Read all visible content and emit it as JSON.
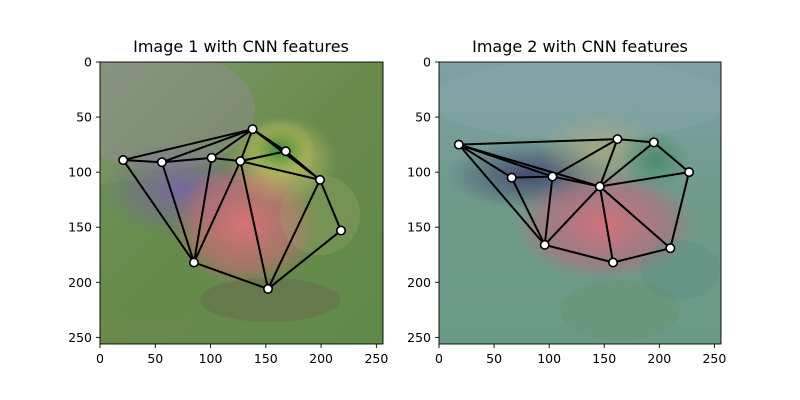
{
  "chart_data": [
    {
      "type": "scatter",
      "title": "Image 1 with CNN features",
      "xlim": [
        0,
        256
      ],
      "ylim": [
        256,
        0
      ],
      "xticks": [
        0,
        50,
        100,
        150,
        200,
        250
      ],
      "yticks": [
        0,
        50,
        100,
        150,
        200,
        250
      ],
      "background": "duck photo with CNN feature heatmap overlay",
      "points": [
        {
          "x": 138,
          "y": 61
        },
        {
          "x": 168,
          "y": 81
        },
        {
          "x": 21,
          "y": 89
        },
        {
          "x": 56,
          "y": 91
        },
        {
          "x": 101,
          "y": 87
        },
        {
          "x": 127,
          "y": 90
        },
        {
          "x": 199,
          "y": 107
        },
        {
          "x": 218,
          "y": 153
        },
        {
          "x": 85,
          "y": 182
        },
        {
          "x": 152,
          "y": 206
        }
      ],
      "edges": [
        [
          2,
          0
        ],
        [
          2,
          3
        ],
        [
          2,
          8
        ],
        [
          3,
          0
        ],
        [
          3,
          4
        ],
        [
          3,
          8
        ],
        [
          4,
          0
        ],
        [
          4,
          5
        ],
        [
          4,
          8
        ],
        [
          5,
          0
        ],
        [
          5,
          1
        ],
        [
          5,
          6
        ],
        [
          5,
          8
        ],
        [
          5,
          9
        ],
        [
          0,
          1
        ],
        [
          1,
          6
        ],
        [
          6,
          7
        ],
        [
          6,
          9
        ],
        [
          7,
          9
        ],
        [
          8,
          9
        ],
        [
          0,
          6
        ]
      ]
    },
    {
      "type": "scatter",
      "title": "Image 2 with CNN features",
      "xlim": [
        0,
        256
      ],
      "ylim": [
        256,
        0
      ],
      "xticks": [
        0,
        50,
        100,
        150,
        200,
        250
      ],
      "yticks": [
        0,
        50,
        100,
        150,
        200,
        250
      ],
      "background": "duck photo with CNN feature heatmap overlay",
      "points": [
        {
          "x": 18,
          "y": 75
        },
        {
          "x": 162,
          "y": 70
        },
        {
          "x": 195,
          "y": 73
        },
        {
          "x": 227,
          "y": 100
        },
        {
          "x": 66,
          "y": 105
        },
        {
          "x": 103,
          "y": 104
        },
        {
          "x": 146,
          "y": 113
        },
        {
          "x": 96,
          "y": 166
        },
        {
          "x": 158,
          "y": 182
        },
        {
          "x": 210,
          "y": 169
        }
      ],
      "edges": [
        [
          0,
          1
        ],
        [
          0,
          4
        ],
        [
          0,
          5
        ],
        [
          0,
          6
        ],
        [
          0,
          7
        ],
        [
          4,
          5
        ],
        [
          4,
          7
        ],
        [
          5,
          1
        ],
        [
          5,
          6
        ],
        [
          5,
          7
        ],
        [
          1,
          2
        ],
        [
          1,
          6
        ],
        [
          2,
          3
        ],
        [
          2,
          6
        ],
        [
          3,
          6
        ],
        [
          3,
          9
        ],
        [
          6,
          7
        ],
        [
          6,
          8
        ],
        [
          6,
          9
        ],
        [
          7,
          8
        ],
        [
          8,
          9
        ]
      ]
    }
  ]
}
